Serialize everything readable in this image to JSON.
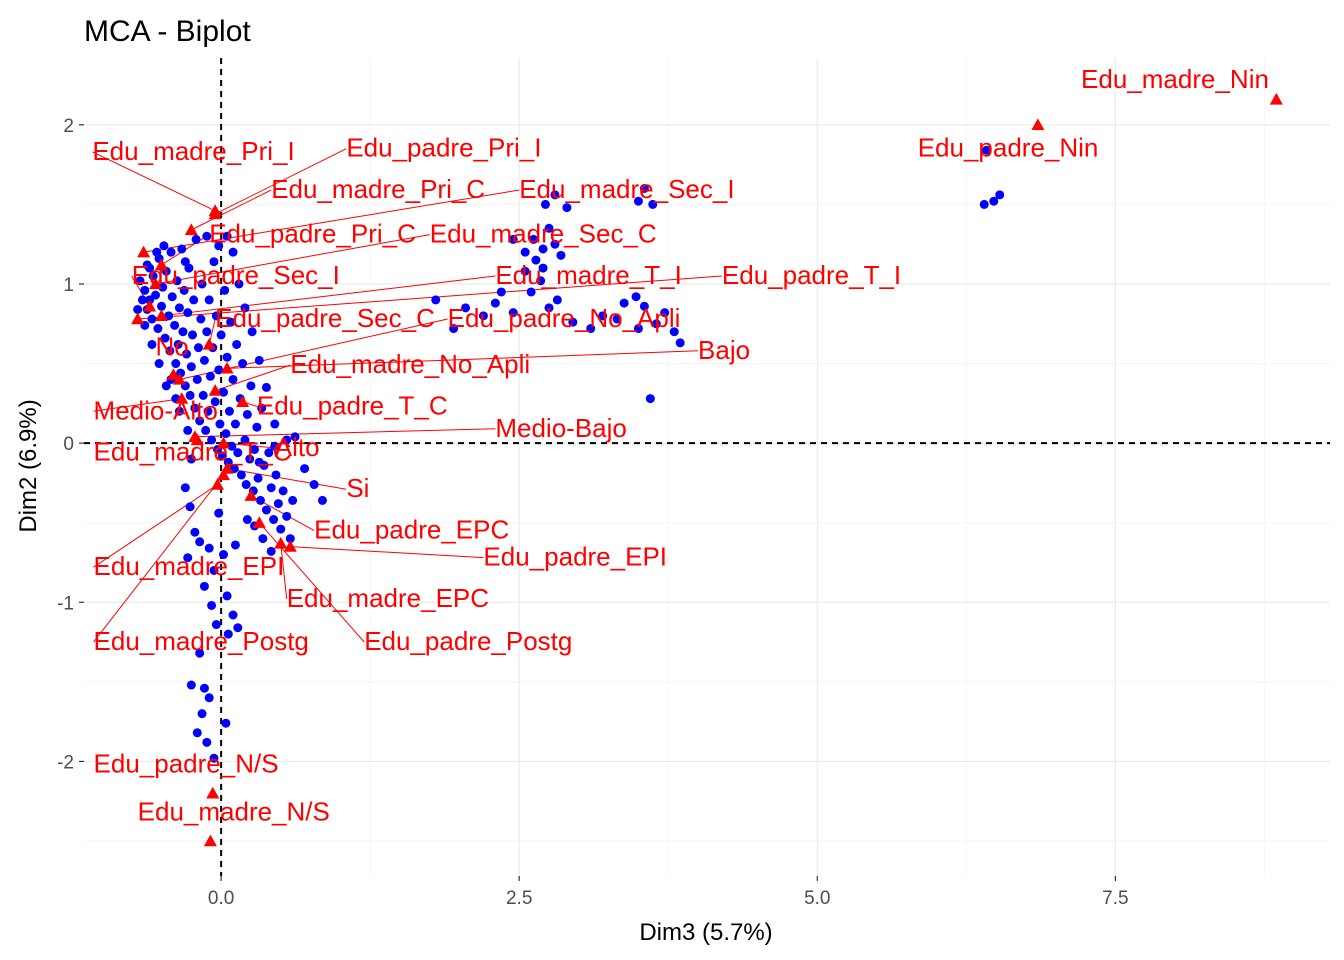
{
  "chart_data": {
    "type": "scatter",
    "title": "MCA - Biplot",
    "xlabel": "Dim3 (5.7%)",
    "ylabel": "Dim2 (6.9%)",
    "xlim": [
      -1.15,
      9.3
    ],
    "ylim": [
      -2.72,
      2.42
    ],
    "x_ticks": [
      {
        "value": 0,
        "label": "0.0"
      },
      {
        "value": 2.5,
        "label": "2.5"
      },
      {
        "value": 5,
        "label": "5.0"
      },
      {
        "value": 7.5,
        "label": "7.5"
      }
    ],
    "y_ticks": [
      {
        "value": -2,
        "label": "-2"
      },
      {
        "value": -1,
        "label": "-1"
      },
      {
        "value": 0,
        "label": "0"
      },
      {
        "value": 1,
        "label": "1"
      },
      {
        "value": 2,
        "label": "2"
      }
    ],
    "grid": true,
    "reference_lines": {
      "x": 0,
      "y": 0,
      "style": "dashed"
    },
    "colors": {
      "individuals": "#0000ff",
      "categories": "#ff0000",
      "grid_major": "#ebebeb",
      "grid_minor": "#f5f5f5",
      "axis_tick": "#333333"
    },
    "individuals": [
      [
        -0.68,
        1.02
      ],
      [
        -0.66,
        0.9
      ],
      [
        -0.64,
        0.96
      ],
      [
        -0.62,
        0.84
      ],
      [
        -0.6,
        1.1
      ],
      [
        -0.58,
        0.78
      ],
      [
        -0.57,
        1.05
      ],
      [
        -0.55,
        0.93
      ],
      [
        -0.53,
        0.72
      ],
      [
        -0.52,
        1.16
      ],
      [
        -0.5,
        0.86
      ],
      [
        -0.49,
        0.98
      ],
      [
        -0.47,
        0.66
      ],
      [
        -0.46,
        1.08
      ],
      [
        -0.44,
        0.8
      ],
      [
        -0.43,
        0.58
      ],
      [
        -0.42,
        1.2
      ],
      [
        -0.41,
        0.92
      ],
      [
        -0.39,
        0.74
      ],
      [
        -0.38,
        0.5
      ],
      [
        -0.37,
        1.02
      ],
      [
        -0.36,
        0.62
      ],
      [
        -0.35,
        0.85
      ],
      [
        -0.34,
        0.44
      ],
      [
        -0.33,
        1.22
      ],
      [
        -0.32,
        0.7
      ],
      [
        -0.31,
        0.96
      ],
      [
        -0.3,
        0.36
      ],
      [
        -0.29,
        0.56
      ],
      [
        -0.28,
        0.82
      ],
      [
        -0.27,
        1.1
      ],
      [
        -0.26,
        0.3
      ],
      [
        -0.25,
        0.48
      ],
      [
        -0.24,
        0.68
      ],
      [
        -0.23,
        0.9
      ],
      [
        -0.22,
        0.22
      ],
      [
        -0.21,
        1.28
      ],
      [
        -0.2,
        0.4
      ],
      [
        -0.19,
        0.6
      ],
      [
        -0.18,
        0.14
      ],
      [
        -0.17,
        0.78
      ],
      [
        -0.16,
        1.0
      ],
      [
        -0.15,
        0.3
      ],
      [
        -0.14,
        0.52
      ],
      [
        -0.13,
        0.08
      ],
      [
        -0.12,
        0.7
      ],
      [
        -0.11,
        0.2
      ],
      [
        -0.1,
        0.9
      ],
      [
        -0.09,
        0.42
      ],
      [
        -0.08,
        0.02
      ],
      [
        -0.07,
        0.6
      ],
      [
        -0.06,
        1.14
      ],
      [
        -0.05,
        0.26
      ],
      [
        -0.04,
        0.8
      ],
      [
        -0.03,
        -0.04
      ],
      [
        -0.02,
        0.46
      ],
      [
        -0.01,
        0.12
      ],
      [
        0.0,
        0.68
      ],
      [
        0.01,
        -0.08
      ],
      [
        0.02,
        0.32
      ],
      [
        0.03,
        0.96
      ],
      [
        0.04,
        0.06
      ],
      [
        0.05,
        0.54
      ],
      [
        0.06,
        -0.12
      ],
      [
        0.07,
        0.2
      ],
      [
        0.08,
        0.76
      ],
      [
        0.09,
        -0.02
      ],
      [
        0.1,
        0.4
      ],
      [
        0.11,
        -0.16
      ],
      [
        0.12,
        0.12
      ],
      [
        0.13,
        0.62
      ],
      [
        0.14,
        -0.06
      ],
      [
        0.16,
        0.28
      ],
      [
        0.17,
        -0.2
      ],
      [
        0.18,
        0.5
      ],
      [
        0.2,
        0.02
      ],
      [
        0.21,
        -0.26
      ],
      [
        0.22,
        0.18
      ],
      [
        0.24,
        -0.1
      ],
      [
        0.25,
        0.36
      ],
      [
        0.27,
        -0.3
      ],
      [
        0.28,
        -0.04
      ],
      [
        0.3,
        0.1
      ],
      [
        0.31,
        -0.22
      ],
      [
        0.33,
        -0.36
      ],
      [
        0.34,
        0.22
      ],
      [
        0.36,
        -0.14
      ],
      [
        0.38,
        -0.42
      ],
      [
        0.4,
        -0.06
      ],
      [
        0.42,
        -0.28
      ],
      [
        0.44,
        -0.48
      ],
      [
        0.46,
        -0.2
      ],
      [
        0.48,
        -0.38
      ],
      [
        0.5,
        -0.54
      ],
      [
        0.52,
        -0.3
      ],
      [
        0.55,
        -0.46
      ],
      [
        0.58,
        -0.6
      ],
      [
        0.6,
        -0.36
      ],
      [
        0.55,
        0.02
      ],
      [
        0.45,
        0.12
      ],
      [
        0.38,
        0.35
      ],
      [
        0.32,
        0.52
      ],
      [
        0.26,
        0.7
      ],
      [
        0.2,
        0.85
      ],
      [
        0.15,
        1.0
      ],
      [
        0.1,
        1.2
      ],
      [
        0.05,
        1.3
      ],
      [
        -0.02,
        1.24
      ],
      [
        -0.12,
        1.3
      ],
      [
        -0.3,
        1.14
      ],
      [
        -0.42,
        0.4
      ],
      [
        -0.35,
        0.2
      ],
      [
        -0.28,
        0.08
      ],
      [
        -0.25,
        -0.1
      ],
      [
        -0.3,
        -0.28
      ],
      [
        -0.26,
        -0.4
      ],
      [
        -0.22,
        -0.56
      ],
      [
        -0.28,
        -0.72
      ],
      [
        -0.18,
        -0.62
      ],
      [
        -0.1,
        -0.66
      ],
      [
        -0.06,
        -0.8
      ],
      [
        -0.14,
        -0.9
      ],
      [
        -0.08,
        -1.02
      ],
      [
        0.02,
        -0.7
      ],
      [
        0.05,
        -0.96
      ],
      [
        0.1,
        -1.08
      ],
      [
        0.14,
        -1.16
      ],
      [
        0.06,
        -1.2
      ],
      [
        -0.04,
        -1.14
      ],
      [
        0.12,
        -0.64
      ],
      [
        -0.18,
        -1.32
      ],
      [
        -0.25,
        -1.52
      ],
      [
        -0.14,
        -1.54
      ],
      [
        -0.1,
        -1.6
      ],
      [
        -0.2,
        -1.82
      ],
      [
        -0.12,
        -1.88
      ],
      [
        0.04,
        -1.76
      ],
      [
        -0.06,
        -1.98
      ],
      [
        -0.16,
        -1.7
      ],
      [
        -0.02,
        -0.44
      ],
      [
        -0.38,
        0.28
      ],
      [
        -0.46,
        0.36
      ],
      [
        -0.52,
        0.5
      ],
      [
        -0.58,
        0.62
      ],
      [
        -0.64,
        0.74
      ],
      [
        -0.7,
        0.84
      ],
      [
        -0.6,
        0.9
      ],
      [
        -0.62,
        1.12
      ],
      [
        -0.54,
        1.2
      ],
      [
        -0.48,
        1.24
      ],
      [
        0.22,
        -0.48
      ],
      [
        0.28,
        -0.52
      ],
      [
        0.35,
        -0.6
      ],
      [
        0.42,
        -0.68
      ],
      [
        0.32,
        -0.12
      ],
      [
        0.45,
        -0.02
      ],
      [
        0.62,
        0.04
      ],
      [
        0.7,
        -0.16
      ],
      [
        0.78,
        -0.26
      ],
      [
        0.85,
        -0.36
      ],
      [
        2.45,
        1.28
      ],
      [
        2.55,
        1.2
      ],
      [
        2.62,
        1.28
      ],
      [
        2.7,
        1.22
      ],
      [
        2.75,
        1.35
      ],
      [
        2.8,
        1.25
      ],
      [
        2.64,
        1.15
      ],
      [
        2.55,
        1.08
      ],
      [
        2.7,
        1.1
      ],
      [
        2.85,
        1.18
      ],
      [
        2.72,
        1.5
      ],
      [
        2.8,
        1.56
      ],
      [
        2.9,
        1.48
      ],
      [
        3.55,
        1.6
      ],
      [
        3.5,
        1.52
      ],
      [
        3.62,
        1.5
      ],
      [
        2.6,
        0.95
      ],
      [
        2.68,
        1.02
      ],
      [
        2.82,
        0.9
      ],
      [
        2.75,
        0.85
      ],
      [
        3.38,
        0.88
      ],
      [
        3.48,
        0.92
      ],
      [
        3.55,
        0.86
      ],
      [
        3.72,
        0.82
      ],
      [
        3.8,
        0.7
      ],
      [
        3.65,
        0.75
      ],
      [
        3.32,
        0.78
      ],
      [
        3.5,
        0.72
      ],
      [
        3.85,
        0.63
      ],
      [
        3.6,
        0.28
      ],
      [
        2.95,
        0.76
      ],
      [
        3.1,
        0.72
      ],
      [
        3.2,
        0.8
      ],
      [
        2.45,
        0.82
      ],
      [
        2.35,
        0.95
      ],
      [
        2.3,
        0.88
      ],
      [
        2.2,
        0.8
      ],
      [
        2.05,
        0.85
      ],
      [
        1.95,
        0.72
      ],
      [
        1.8,
        0.9
      ],
      [
        6.42,
        1.84
      ],
      [
        6.48,
        1.52
      ],
      [
        6.53,
        1.56
      ],
      [
        6.4,
        1.5
      ]
    ],
    "categories": [
      {
        "name": "Edu_madre_Nin",
        "x": 8.85,
        "y": 2.16,
        "lx": 8.0,
        "ly": 2.23,
        "anchor": "middle",
        "line": false
      },
      {
        "name": "Edu_padre_Nin",
        "x": 6.85,
        "y": 2.0,
        "lx": 6.6,
        "ly": 1.8,
        "anchor": "middle",
        "line": false
      },
      {
        "name": "Edu_madre_Pri_I",
        "x": -0.05,
        "y": 1.46,
        "lx": -1.08,
        "ly": 1.78,
        "anchor": "start",
        "line": true
      },
      {
        "name": "Edu_padre_Pri_I",
        "x": -0.05,
        "y": 1.44,
        "lx": 1.05,
        "ly": 1.8,
        "anchor": "start",
        "line": true
      },
      {
        "name": "Edu_madre_Pri_C",
        "x": -0.25,
        "y": 1.34,
        "lx": 0.42,
        "ly": 1.54,
        "anchor": "start",
        "line": true
      },
      {
        "name": "Edu_madre_Sec_I",
        "x": -0.65,
        "y": 1.2,
        "lx": 2.5,
        "ly": 1.54,
        "anchor": "start",
        "line": true
      },
      {
        "name": "Edu_padre_Pri_C",
        "x": -0.5,
        "y": 1.12,
        "lx": -0.1,
        "ly": 1.26,
        "anchor": "start",
        "line": true
      },
      {
        "name": "Edu_madre_Sec_C",
        "x": -0.55,
        "y": 1.0,
        "lx": 1.75,
        "ly": 1.26,
        "anchor": "start",
        "line": true
      },
      {
        "name": "Edu_padre_Sec_I",
        "x": -0.6,
        "y": 0.86,
        "lx": -0.75,
        "ly": 1.0,
        "anchor": "start",
        "line": true
      },
      {
        "name": "Edu_madre_T_I",
        "x": -0.5,
        "y": 0.8,
        "lx": 2.3,
        "ly": 1.0,
        "anchor": "start",
        "line": true
      },
      {
        "name": "Edu_padre_T_I",
        "x": -0.7,
        "y": 0.78,
        "lx": 4.2,
        "ly": 1.0,
        "anchor": "start",
        "line": true
      },
      {
        "name": "Edu_padre_Sec_C",
        "x": -0.1,
        "y": 0.62,
        "lx": -0.05,
        "ly": 0.73,
        "anchor": "start",
        "line": true
      },
      {
        "name": "Edu_padre_No_Apli",
        "x": -0.35,
        "y": 0.4,
        "lx": 1.9,
        "ly": 0.73,
        "anchor": "start",
        "line": true
      },
      {
        "name": "No",
        "x": -0.4,
        "y": 0.43,
        "lx": -0.55,
        "ly": 0.55,
        "anchor": "start",
        "line": false
      },
      {
        "name": "Bajo",
        "x": 0.05,
        "y": 0.47,
        "lx": 4.0,
        "ly": 0.53,
        "anchor": "start",
        "line": true
      },
      {
        "name": "Edu_madre_No_Apli",
        "x": -0.05,
        "y": 0.33,
        "lx": 0.58,
        "ly": 0.44,
        "anchor": "start",
        "line": true
      },
      {
        "name": "Medio-Alto",
        "x": -0.33,
        "y": 0.28,
        "lx": -1.07,
        "ly": 0.15,
        "anchor": "start",
        "line": true
      },
      {
        "name": "Edu_padre_T_C",
        "x": 0.18,
        "y": 0.26,
        "lx": 0.3,
        "ly": 0.18,
        "anchor": "start",
        "line": true
      },
      {
        "name": "Medio-Bajo",
        "x": -0.22,
        "y": 0.04,
        "lx": 2.3,
        "ly": 0.04,
        "anchor": "start",
        "line": true
      },
      {
        "name": "Edu_madre_T_C",
        "x": -0.2,
        "y": 0.02,
        "lx": -1.07,
        "ly": -0.11,
        "anchor": "start",
        "line": false
      },
      {
        "name": "Alto",
        "x": 0.02,
        "y": 0.0,
        "lx": 0.45,
        "ly": -0.08,
        "anchor": "start",
        "line": true
      },
      {
        "name": "Si",
        "x": 0.05,
        "y": -0.16,
        "lx": 1.05,
        "ly": -0.34,
        "anchor": "start",
        "line": true
      },
      {
        "name": "Edu_padre_EPC",
        "x": 0.25,
        "y": -0.33,
        "lx": 0.78,
        "ly": -0.6,
        "anchor": "start",
        "line": true
      },
      {
        "name": "Edu_padre_EPI",
        "x": 0.58,
        "y": -0.65,
        "lx": 2.2,
        "ly": -0.77,
        "anchor": "start",
        "line": true
      },
      {
        "name": "Edu_madre_EPI",
        "x": -0.03,
        "y": -0.26,
        "lx": -1.07,
        "ly": -0.83,
        "anchor": "start",
        "line": true
      },
      {
        "name": "Edu_madre_EPC",
        "x": 0.5,
        "y": -0.63,
        "lx": 0.55,
        "ly": -1.03,
        "anchor": "start",
        "line": true
      },
      {
        "name": "Edu_madre_Postg",
        "x": 0.02,
        "y": -0.2,
        "lx": -1.07,
        "ly": -1.3,
        "anchor": "start",
        "line": true
      },
      {
        "name": "Edu_padre_Postg",
        "x": 0.32,
        "y": -0.5,
        "lx": 1.2,
        "ly": -1.3,
        "anchor": "start",
        "line": true
      },
      {
        "name": "Edu_padre_N/S",
        "x": -0.07,
        "y": -2.2,
        "lx": -1.07,
        "ly": -2.07,
        "anchor": "start",
        "line": false
      },
      {
        "name": "Edu_madre_N/S",
        "x": -0.09,
        "y": -2.5,
        "lx": -0.7,
        "ly": -2.37,
        "anchor": "start",
        "line": false
      }
    ]
  }
}
